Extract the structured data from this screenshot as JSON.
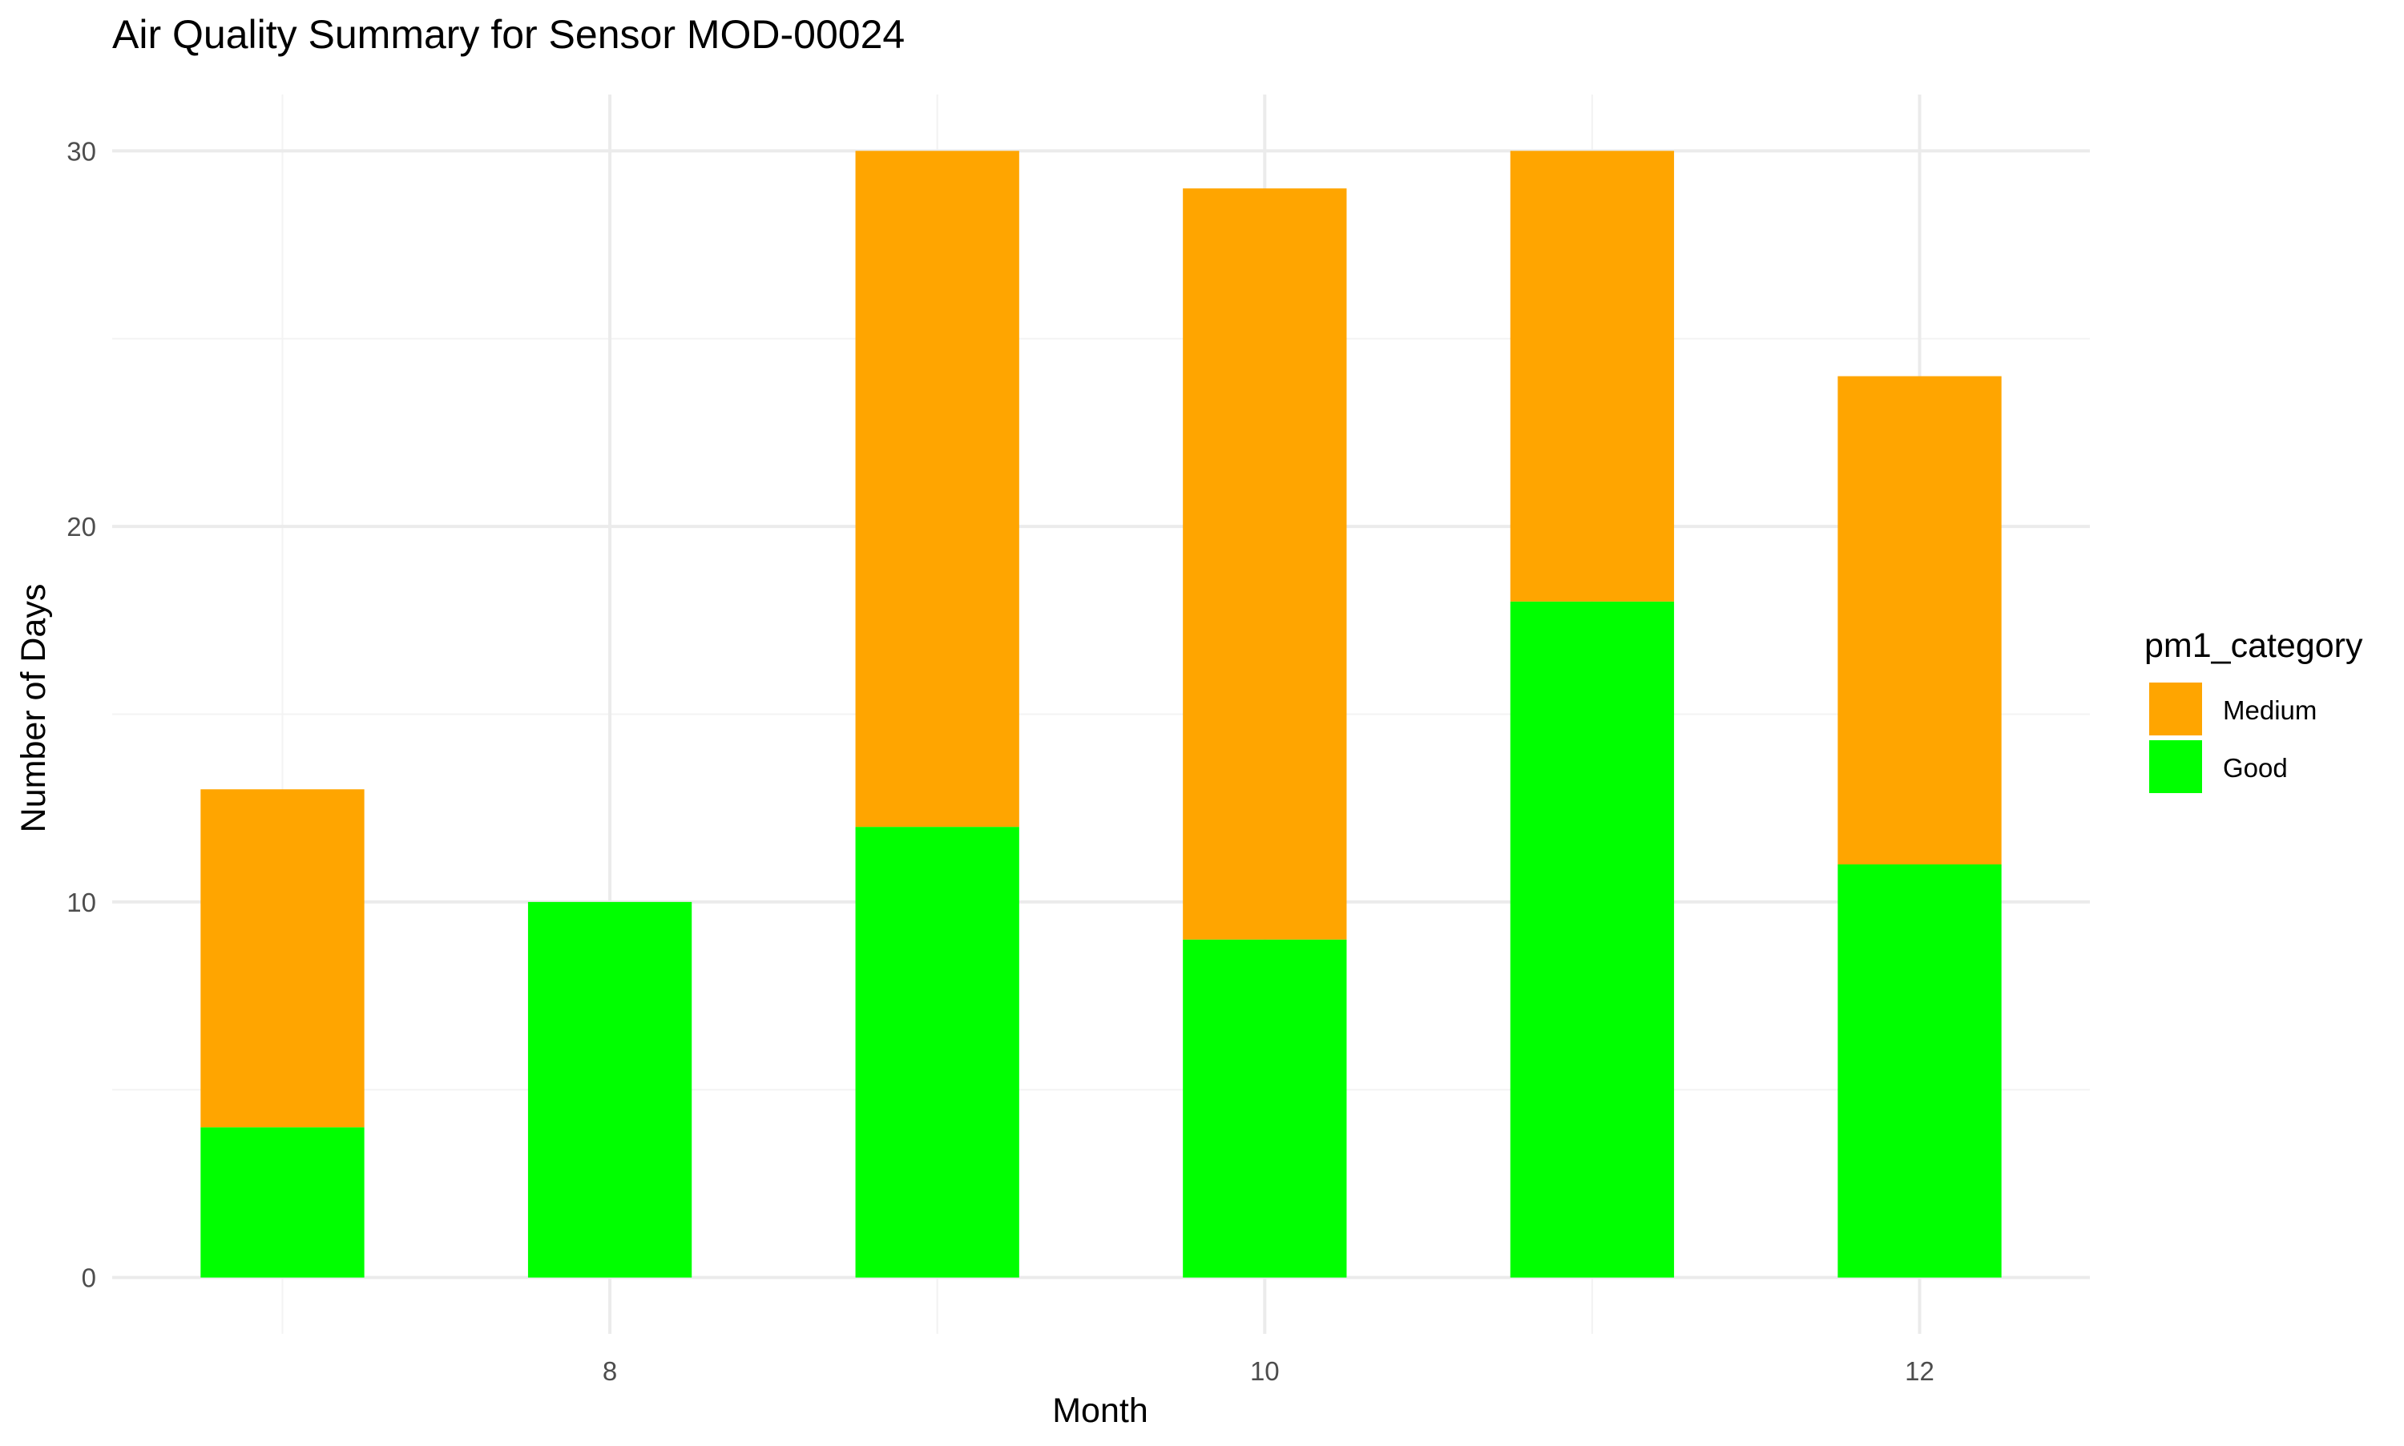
{
  "chart_data": {
    "type": "bar",
    "stacked": true,
    "title": "Air Quality Summary for Sensor MOD-00024",
    "xlabel": "Month",
    "ylabel": "Number of Days",
    "x": [
      7,
      8,
      9,
      10,
      11,
      12
    ],
    "xlim": [
      6.48,
      12.52
    ],
    "x_ticks": [
      8,
      10,
      12
    ],
    "x_tick_labels": [
      "8",
      "10",
      "12"
    ],
    "ylim": [
      -1.5,
      31.5
    ],
    "y_ticks": [
      0,
      10,
      20,
      30
    ],
    "y_tick_labels": [
      "0",
      "10",
      "20",
      "30"
    ],
    "grid": true,
    "legend": {
      "title": "pm1_category",
      "placement": "right",
      "entries": [
        "Medium",
        "Good"
      ]
    },
    "series": [
      {
        "name": "Good",
        "color": "#00ff00",
        "values": [
          4,
          10,
          12,
          9,
          18,
          11
        ]
      },
      {
        "name": "Medium",
        "color": "#ffa500",
        "values": [
          9,
          0,
          18,
          20,
          12,
          13
        ]
      }
    ]
  }
}
